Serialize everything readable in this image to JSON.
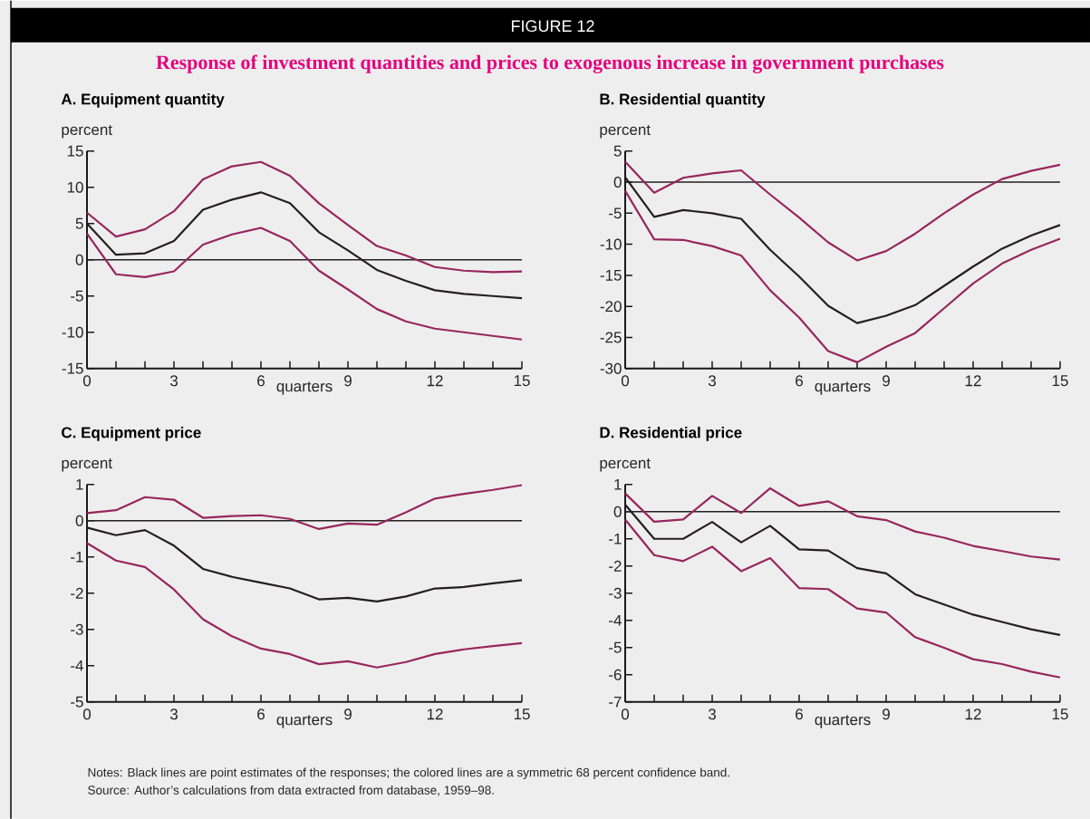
{
  "chart_data": [
    {
      "type": "other",
      "title": "Response of investment quantities and prices to exogenous increase in government purchases",
      "annotations": [
        "FIGURE 12",
        "Notes: Black lines are point estimates of the responses; the colored lines are a symmetric 68 percent confidence band.",
        "Source: Author’s calculations from data extracted from database, 1959–98."
      ]
    },
    {
      "type": "line",
      "title": "A. Equipment quantity",
      "ylabel": "percent",
      "xlabel": "quarters",
      "x": [
        0,
        1,
        2,
        3,
        4,
        5,
        6,
        7,
        8,
        9,
        10,
        11,
        12,
        13,
        14,
        15
      ],
      "series": [
        {
          "color": "#97265f",
          "values": [
            6.5,
            3.2,
            4.2,
            6.7,
            11.1,
            12.9,
            13.5,
            11.6,
            7.8,
            4.8,
            1.9,
            0.6,
            -1.0,
            -1.5,
            -1.7,
            -1.6
          ]
        },
        {
          "color": "#231f20",
          "values": [
            5.0,
            0.7,
            0.9,
            2.6,
            6.9,
            8.3,
            9.3,
            7.8,
            3.8,
            1.3,
            -1.4,
            -2.9,
            -4.2,
            -4.7,
            -5.0,
            -5.3
          ]
        },
        {
          "color": "#97265f",
          "values": [
            3.6,
            -2.0,
            -2.4,
            -1.6,
            2.1,
            3.5,
            4.4,
            2.6,
            -1.5,
            -4.1,
            -6.8,
            -8.5,
            -9.5,
            -10.0,
            -10.5,
            -11.0
          ]
        }
      ],
      "xlim": [
        0,
        15
      ],
      "xticks": [
        0,
        {
          "value": 1,
          "label": null
        },
        {
          "value": 2,
          "label": null
        },
        3,
        {
          "value": 4,
          "label": null
        },
        {
          "value": 5,
          "label": null
        },
        6,
        {
          "value": 7,
          "label": null
        },
        {
          "value": 8,
          "label": null
        },
        9,
        {
          "value": 10,
          "label": null
        },
        {
          "value": 11,
          "label": null
        },
        12,
        {
          "value": 13,
          "label": null
        },
        {
          "value": 14,
          "label": null
        },
        15
      ],
      "ylim": [
        -15,
        15
      ],
      "yticks": [
        -15,
        -10,
        -5,
        0,
        5,
        10,
        15
      ],
      "ref_lines": [
        {
          "axis": "y",
          "value": 0,
          "color": "#231f20"
        }
      ]
    },
    {
      "type": "line",
      "title": "B. Residential quantity",
      "ylabel": "percent",
      "xlabel": "quarters",
      "x": [
        0,
        1,
        2,
        3,
        4,
        5,
        6,
        7,
        8,
        9,
        10,
        11,
        12,
        13,
        14,
        15
      ],
      "series": [
        {
          "color": "#97265f",
          "values": [
            3.3,
            -1.7,
            0.7,
            1.4,
            1.9,
            -2.0,
            -5.7,
            -9.7,
            -12.6,
            -11.1,
            -8.3,
            -5.0,
            -2.0,
            0.5,
            1.8,
            2.8
          ]
        },
        {
          "color": "#231f20",
          "values": [
            0.8,
            -5.6,
            -4.5,
            -5.0,
            -5.9,
            -10.9,
            -15.2,
            -19.9,
            -22.7,
            -21.5,
            -19.8,
            -16.7,
            -13.6,
            -10.7,
            -8.6,
            -6.9
          ]
        },
        {
          "color": "#97265f",
          "values": [
            -1.4,
            -9.2,
            -9.3,
            -10.3,
            -11.8,
            -17.4,
            -21.8,
            -27.2,
            -29.0,
            -26.5,
            -24.3,
            -20.3,
            -16.3,
            -13.1,
            -10.9,
            -9.1
          ]
        }
      ],
      "xlim": [
        0,
        15
      ],
      "xticks": [
        0,
        {
          "value": 1,
          "label": null
        },
        {
          "value": 2,
          "label": null
        },
        3,
        {
          "value": 4,
          "label": null
        },
        {
          "value": 5,
          "label": null
        },
        6,
        {
          "value": 7,
          "label": null
        },
        {
          "value": 8,
          "label": null
        },
        9,
        {
          "value": 10,
          "label": null
        },
        {
          "value": 11,
          "label": null
        },
        12,
        {
          "value": 13,
          "label": null
        },
        {
          "value": 14,
          "label": null
        },
        15
      ],
      "ylim": [
        -30,
        5
      ],
      "yticks": [
        -30,
        -25,
        -20,
        -15,
        -10,
        -5,
        0,
        5
      ],
      "ref_lines": [
        {
          "axis": "y",
          "value": 0,
          "color": "#231f20"
        }
      ]
    },
    {
      "type": "line",
      "title": "C. Equipment price",
      "ylabel": "percent",
      "xlabel": "quarters",
      "x": [
        0,
        1,
        2,
        3,
        4,
        5,
        6,
        7,
        8,
        9,
        10,
        11,
        12,
        13,
        14,
        15
      ],
      "series": [
        {
          "color": "#97265f",
          "values": [
            0.21,
            0.29,
            0.65,
            0.58,
            0.08,
            0.13,
            0.15,
            0.05,
            -0.23,
            -0.08,
            -0.11,
            0.23,
            0.61,
            0.74,
            0.85,
            0.98
          ]
        },
        {
          "color": "#231f20",
          "values": [
            -0.19,
            -0.4,
            -0.26,
            -0.69,
            -1.33,
            -1.55,
            -1.71,
            -1.87,
            -2.17,
            -2.13,
            -2.23,
            -2.09,
            -1.87,
            -1.83,
            -1.73,
            -1.64
          ]
        },
        {
          "color": "#97265f",
          "values": [
            -0.62,
            -1.1,
            -1.28,
            -1.9,
            -2.72,
            -3.19,
            -3.53,
            -3.68,
            -3.96,
            -3.88,
            -4.05,
            -3.9,
            -3.68,
            -3.55,
            -3.46,
            -3.38
          ]
        }
      ],
      "xlim": [
        0,
        15
      ],
      "xticks": [
        0,
        {
          "value": 1,
          "label": null
        },
        {
          "value": 2,
          "label": null
        },
        3,
        {
          "value": 4,
          "label": null
        },
        {
          "value": 5,
          "label": null
        },
        6,
        {
          "value": 7,
          "label": null
        },
        {
          "value": 8,
          "label": null
        },
        9,
        {
          "value": 10,
          "label": null
        },
        {
          "value": 11,
          "label": null
        },
        12,
        {
          "value": 13,
          "label": null
        },
        {
          "value": 14,
          "label": null
        },
        15
      ],
      "ylim": [
        -5,
        1
      ],
      "yticks": [
        -5,
        -4,
        -3,
        -2,
        -1,
        0,
        1
      ],
      "ref_lines": [
        {
          "axis": "y",
          "value": 0,
          "color": "#231f20"
        }
      ]
    },
    {
      "type": "line",
      "title": "D. Residential price",
      "ylabel": "percent",
      "xlabel": "quarters",
      "x": [
        0,
        1,
        2,
        3,
        4,
        5,
        6,
        7,
        8,
        9,
        10,
        11,
        12,
        13,
        14,
        15
      ],
      "series": [
        {
          "color": "#97265f",
          "values": [
            0.67,
            -0.37,
            -0.29,
            0.58,
            -0.05,
            0.86,
            0.21,
            0.38,
            -0.17,
            -0.31,
            -0.73,
            -0.96,
            -1.26,
            -1.45,
            -1.65,
            -1.76
          ]
        },
        {
          "color": "#231f20",
          "values": [
            0.26,
            -1.0,
            -1.0,
            -0.38,
            -1.13,
            -0.52,
            -1.39,
            -1.43,
            -2.08,
            -2.27,
            -3.04,
            -3.42,
            -3.79,
            -4.06,
            -4.33,
            -4.54
          ]
        },
        {
          "color": "#97265f",
          "values": [
            -0.29,
            -1.6,
            -1.82,
            -1.29,
            -2.19,
            -1.71,
            -2.81,
            -2.85,
            -3.56,
            -3.71,
            -4.62,
            -5.01,
            -5.43,
            -5.61,
            -5.89,
            -6.1
          ]
        }
      ],
      "xlim": [
        0,
        15
      ],
      "xticks": [
        0,
        {
          "value": 1,
          "label": null
        },
        {
          "value": 2,
          "label": null
        },
        3,
        {
          "value": 4,
          "label": null
        },
        {
          "value": 5,
          "label": null
        },
        6,
        {
          "value": 7,
          "label": null
        },
        {
          "value": 8,
          "label": null
        },
        9,
        {
          "value": 10,
          "label": null
        },
        {
          "value": 11,
          "label": null
        },
        12,
        {
          "value": 13,
          "label": null
        },
        {
          "value": 14,
          "label": null
        },
        15
      ],
      "ylim": [
        -7,
        1
      ],
      "yticks": [
        -7,
        -6,
        -5,
        -4,
        -3,
        -2,
        -1,
        0,
        1
      ],
      "ref_lines": [
        {
          "axis": "y",
          "value": 0,
          "color": "#231f20"
        }
      ]
    }
  ]
}
